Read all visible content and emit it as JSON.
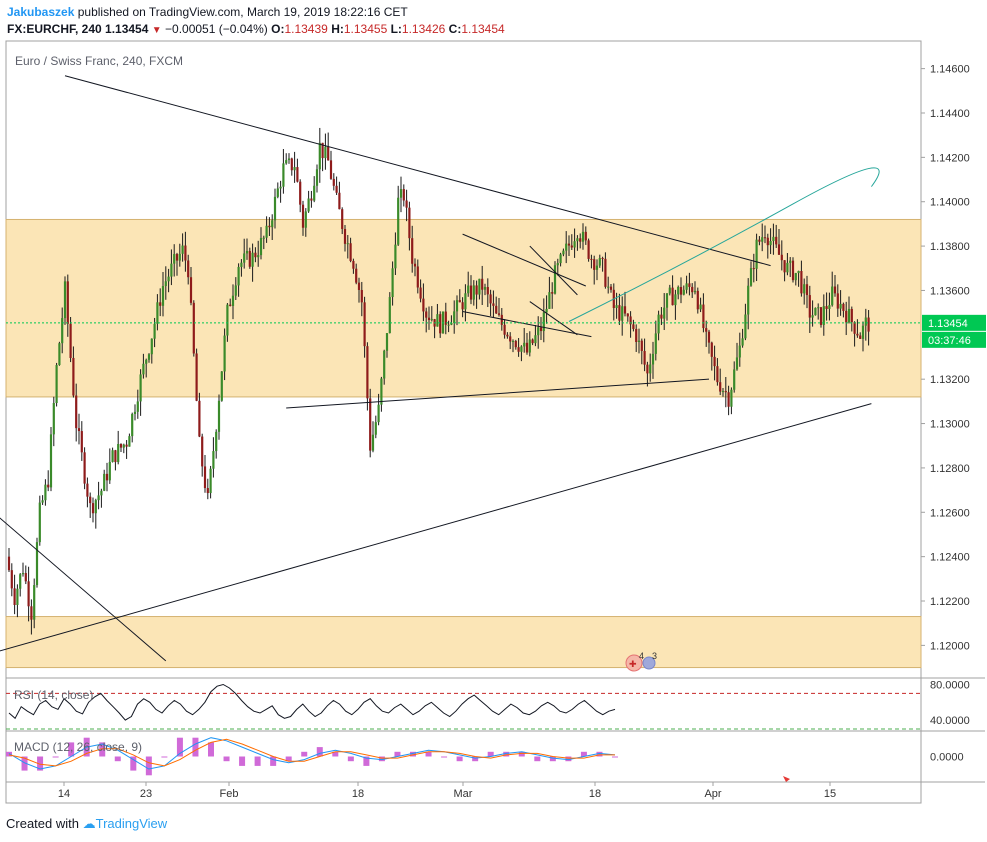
{
  "header": {
    "author": "Jakubaszek",
    "published": "published on TradingView.com, March 19, 2019 18:22:16 CET",
    "symbol": "FX:EURCHF, 240",
    "last": "1.13454",
    "change": "−0.00051 (−0.04%)",
    "o_label": "O:",
    "o": "1.13439",
    "h_label": "H:",
    "h": "1.13455",
    "l_label": "L:",
    "l": "1.13426",
    "c_label": "C:",
    "c": "1.13454"
  },
  "footer": {
    "created_with": "Created with",
    "brand": "TradingView"
  },
  "colors": {
    "bull": "#3a8a2a",
    "bear": "#8e1b1b",
    "zone": "#fbe5b6",
    "zone_edge": "#d4b270",
    "trend": "#131722",
    "curve": "#26a69a",
    "price_tag": "#00c853"
  },
  "chart_data": [
    {
      "type": "candlestick",
      "title": "Euro / Swiss Franc, 240, FXCM",
      "ylim": [
        1.1188,
        1.1472
      ],
      "yticks": [
        {
          "v": 1.146,
          "label": "1.14600"
        },
        {
          "v": 1.144,
          "label": "1.14400"
        },
        {
          "v": 1.142,
          "label": "1.14200"
        },
        {
          "v": 1.14,
          "label": "1.14000"
        },
        {
          "v": 1.138,
          "label": "1.13800"
        },
        {
          "v": 1.136,
          "label": "1.13600"
        },
        {
          "v": 1.132,
          "label": "1.13200"
        },
        {
          "v": 1.13,
          "label": "1.13000"
        },
        {
          "v": 1.128,
          "label": "1.12800"
        },
        {
          "v": 1.126,
          "label": "1.12600"
        },
        {
          "v": 1.124,
          "label": "1.12400"
        },
        {
          "v": 1.122,
          "label": "1.12200"
        },
        {
          "v": 1.12,
          "label": "1.12000"
        }
      ],
      "xticks": [
        "14",
        "23",
        "Feb",
        "18",
        "Mar",
        "18",
        "Apr",
        "15"
      ],
      "last_price": {
        "v": 1.13454,
        "label": "1.13454",
        "countdown": "03:37:46"
      },
      "zones": [
        {
          "low": 1.1312,
          "high": 1.1392
        },
        {
          "low": 1.119,
          "high": 1.1213
        }
      ],
      "path": [
        [
          0,
          1.124
        ],
        [
          3,
          1.1222
        ],
        [
          6,
          1.1235
        ],
        [
          9,
          1.1215
        ],
        [
          12,
          1.126
        ],
        [
          15,
          1.1275
        ],
        [
          18,
          1.1325
        ],
        [
          21,
          1.136
        ],
        [
          25,
          1.13
        ],
        [
          30,
          1.1262
        ],
        [
          34,
          1.127
        ],
        [
          38,
          1.1285
        ],
        [
          43,
          1.1292
        ],
        [
          48,
          1.132
        ],
        [
          52,
          1.134
        ],
        [
          56,
          1.1362
        ],
        [
          60,
          1.1372
        ],
        [
          63,
          1.1378
        ],
        [
          65,
          1.137
        ],
        [
          69,
          1.129
        ],
        [
          72,
          1.1265
        ],
        [
          75,
          1.13
        ],
        [
          79,
          1.135
        ],
        [
          83,
          1.1372
        ],
        [
          88,
          1.1375
        ],
        [
          93,
          1.1385
        ],
        [
          99,
          1.1415
        ],
        [
          103,
          1.1417
        ],
        [
          106,
          1.139
        ],
        [
          109,
          1.1405
        ],
        [
          112,
          1.1425
        ],
        [
          115,
          1.1418
        ],
        [
          118,
          1.14
        ],
        [
          121,
          1.1385
        ],
        [
          124,
          1.1373
        ],
        [
          127,
          1.1355
        ],
        [
          130,
          1.129
        ],
        [
          133,
          1.1306
        ],
        [
          137,
          1.1355
        ],
        [
          140,
          1.14
        ],
        [
          142,
          1.1403
        ],
        [
          145,
          1.1375
        ],
        [
          150,
          1.135
        ],
        [
          155,
          1.1345
        ],
        [
          160,
          1.135
        ],
        [
          165,
          1.1358
        ],
        [
          170,
          1.1362
        ],
        [
          175,
          1.1348
        ],
        [
          180,
          1.134
        ],
        [
          186,
          1.1332
        ],
        [
          191,
          1.1343
        ],
        [
          196,
          1.1367
        ],
        [
          200,
          1.1378
        ],
        [
          204,
          1.1388
        ],
        [
          209,
          1.1375
        ],
        [
          213,
          1.137
        ],
        [
          217,
          1.1352
        ],
        [
          221,
          1.1348
        ],
        [
          225,
          1.134
        ],
        [
          229,
          1.1322
        ],
        [
          233,
          1.1348
        ],
        [
          237,
          1.1357
        ],
        [
          241,
          1.136
        ],
        [
          246,
          1.1362
        ],
        [
          250,
          1.1337
        ],
        [
          254,
          1.132
        ],
        [
          258,
          1.1312
        ],
        [
          262,
          1.1334
        ],
        [
          265,
          1.136
        ],
        [
          268,
          1.138
        ],
        [
          271,
          1.1387
        ],
        [
          275,
          1.1378
        ],
        [
          279,
          1.137
        ],
        [
          283,
          1.1367
        ],
        [
          287,
          1.135
        ],
        [
          291,
          1.1348
        ],
        [
          295,
          1.1358
        ],
        [
          299,
          1.1352
        ],
        [
          302,
          1.1346
        ],
        [
          305,
          1.134
        ],
        [
          307,
          1.1345
        ]
      ],
      "lines": [
        {
          "from": [
            20,
            1.14568
          ],
          "to": [
            272,
            1.13712
          ]
        },
        {
          "from": [
            99,
            1.1307
          ],
          "to": [
            250,
            1.132
          ]
        },
        {
          "from": [
            -13,
            1.1194
          ],
          "to": [
            308,
            1.1309
          ]
        },
        {
          "from": [
            -13,
            1.1268
          ],
          "to": [
            56,
            1.1193
          ]
        },
        {
          "from": [
            162,
            1.13854
          ],
          "to": [
            206,
            1.1362
          ]
        },
        {
          "from": [
            162,
            1.13505
          ],
          "to": [
            208,
            1.13392
          ]
        },
        {
          "from": [
            186,
            1.138
          ],
          "to": [
            203,
            1.1358
          ]
        },
        {
          "from": [
            186,
            1.1355
          ],
          "to": [
            203,
            1.134
          ]
        }
      ],
      "projection": [
        [
          200,
          1.1346
        ],
        [
          240,
          1.1371
        ],
        [
          280,
          1.1399
        ],
        [
          308,
          1.14068
        ]
      ],
      "x_dates": {
        "14": 8,
        "23": 36,
        "Feb": 64,
        "18": 113,
        "Mar": 142,
        "Apr": 225,
        "15": 264
      }
    },
    {
      "type": "line",
      "title": "RSI (14, close)",
      "ylim": [
        30,
        85
      ],
      "levels": [
        {
          "v": 70,
          "color": "#c62828"
        },
        {
          "v": 30,
          "color": "#4caf50"
        }
      ],
      "yticks": [
        {
          "v": 80,
          "label": "80.0000"
        },
        {
          "v": 40,
          "label": "40.0000"
        }
      ],
      "x_range": [
        0,
        200
      ],
      "values": [
        48,
        42,
        55,
        50,
        46,
        58,
        62,
        55,
        52,
        64,
        58,
        50,
        47,
        60,
        66,
        70,
        62,
        55,
        48,
        40,
        44,
        58,
        64,
        60,
        52,
        48,
        56,
        62,
        58,
        50,
        46,
        52,
        60,
        72,
        78,
        80,
        76,
        70,
        62,
        55,
        50,
        48,
        52,
        56,
        46,
        42,
        44,
        52,
        58,
        50,
        44,
        48,
        56,
        62,
        58,
        50,
        46,
        52,
        60,
        64,
        56,
        50,
        48,
        54,
        58,
        52,
        46,
        50,
        56,
        60,
        54,
        48,
        44,
        50,
        58,
        64,
        68,
        62,
        56,
        50,
        46,
        52,
        58,
        54,
        48,
        46,
        50,
        56,
        60,
        56,
        50,
        48,
        52,
        58,
        62,
        56,
        50,
        46,
        50,
        52
      ]
    },
    {
      "type": "line",
      "title": "MACD (12, 26, close, 9)",
      "ylim": [
        -0.0015,
        0.0015
      ],
      "yticks": [
        {
          "v": 0,
          "label": "0.0000"
        }
      ],
      "x_range": [
        0,
        200
      ],
      "macd": [
        0.0002,
        -0.0004,
        -0.0008,
        -0.0006,
        0.0,
        0.0006,
        0.0008,
        0.0004,
        -0.0002,
        -0.0008,
        -0.0006,
        0.0002,
        0.0008,
        0.0012,
        0.001,
        0.0006,
        0.0002,
        -0.0002,
        -0.0004,
        -0.0002,
        0.0002,
        0.0004,
        0.0002,
        -0.0001,
        -0.0002,
        0.0,
        0.0002,
        0.0004,
        0.0003,
        0.0001,
        -0.0001,
        0.0,
        0.0002,
        0.0003,
        0.0001,
        -0.0001,
        -0.0002,
        0.0,
        0.0002,
        0.0001
      ],
      "signal": [
        0.0001,
        -0.0001,
        -0.0005,
        -0.0006,
        -0.0003,
        0.0002,
        0.0005,
        0.0005,
        0.0001,
        -0.0004,
        -0.0006,
        -0.0002,
        0.0004,
        0.0009,
        0.0011,
        0.0008,
        0.0004,
        0.0,
        -0.0003,
        -0.0003,
        0.0,
        0.0003,
        0.0003,
        0.0001,
        -0.0001,
        -0.0001,
        0.0001,
        0.0003,
        0.0003,
        0.0002,
        0.0,
        -0.0001,
        0.0001,
        0.0002,
        0.0002,
        0.0,
        -0.0001,
        -0.0001,
        0.0001,
        0.0001
      ]
    }
  ]
}
